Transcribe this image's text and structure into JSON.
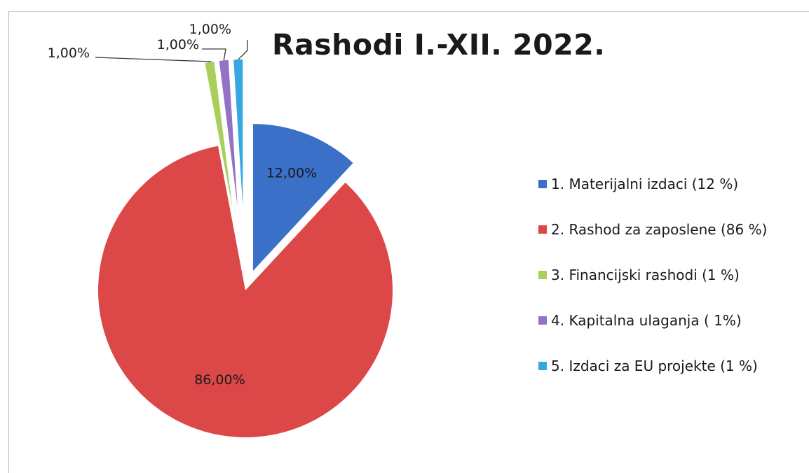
{
  "chart_data": {
    "type": "pie",
    "title": "Rashodi I.-XII. 2022.",
    "categories": [
      "1. Materijalni izdaci (12 %)",
      "2. Rashod za zaposlene (86 %)",
      "3. Financijski rashodi (1 %)",
      "4. Kapitalna ulaganja ( 1%)",
      "5. Izdaci za EU projekte  (1 %)"
    ],
    "values": [
      12,
      86,
      1,
      1,
      1
    ],
    "data_labels": [
      "12,00%",
      "86,00%",
      "1,00%",
      "1,00%",
      "1,00%"
    ],
    "colors": [
      "#3a70c8",
      "#dc4747",
      "#a8cf5a",
      "#9371c4",
      "#35a7e2"
    ],
    "legend_position": "right",
    "exploded": true
  }
}
